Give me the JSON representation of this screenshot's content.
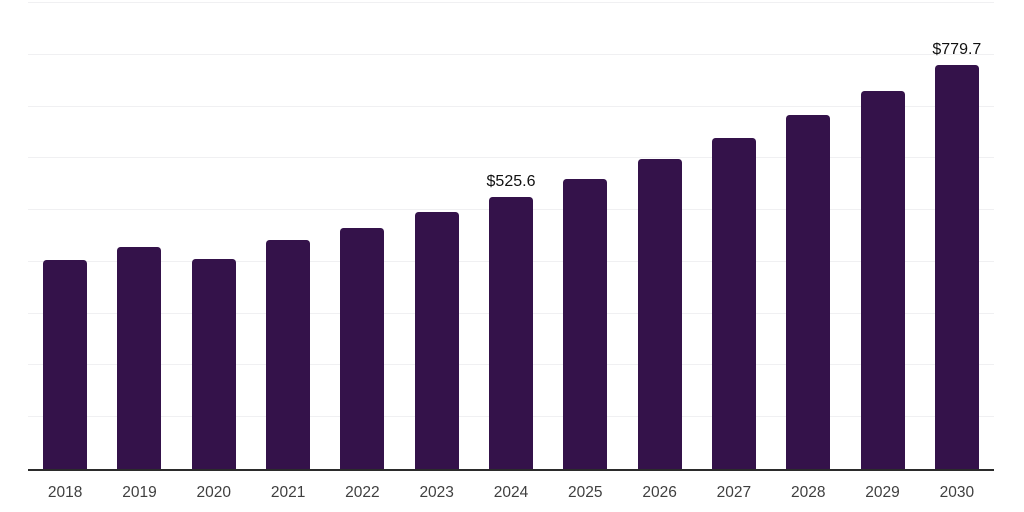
{
  "chart_data": {
    "type": "bar",
    "title": "",
    "xlabel": "",
    "ylabel": "",
    "categories": [
      "2018",
      "2019",
      "2020",
      "2021",
      "2022",
      "2023",
      "2024",
      "2025",
      "2026",
      "2027",
      "2028",
      "2029",
      "2030"
    ],
    "values": [
      404.0,
      429.0,
      406.1,
      442.5,
      465.5,
      496.2,
      525.6,
      559.8,
      598.3,
      638.7,
      683.0,
      729.4,
      779.7
    ],
    "data_labels": {
      "2024": "$525.6",
      "2030": "$779.7"
    },
    "ylim": [
      0,
      900
    ],
    "grid_step": 100,
    "grid": true,
    "legend": false,
    "colors": {
      "bar": "#34124a",
      "grid": "#f0f0f2",
      "axis": "#2b2b2b",
      "data_label": "#111111",
      "tick_label": "#3f3f3f",
      "background": "#ffffff"
    }
  }
}
